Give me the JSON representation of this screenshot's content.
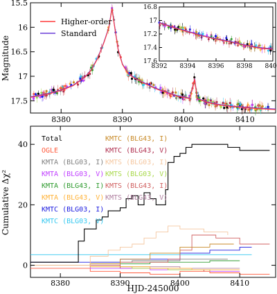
{
  "chart_data": [
    {
      "type": "scatter",
      "panel": "top",
      "ylabel": "Magnitude",
      "xlim": [
        8375,
        8415
      ],
      "ylim": [
        17.75,
        15.5
      ],
      "xticks": [
        "8380",
        "8390",
        "8400",
        "8410"
      ],
      "yticks": [
        "15.5",
        "16",
        "16.5",
        "17",
        "17.5"
      ],
      "legend": [
        {
          "name": "Higher-order",
          "color": "#ff3b3b"
        },
        {
          "name": "Standard",
          "color": "#6a3bd8"
        }
      ],
      "inset": {
        "xlim": [
          8392,
          8400
        ],
        "ylim": [
          17.6,
          16.8
        ],
        "xticks": [
          "8392",
          "8394",
          "8396",
          "8398",
          "8400"
        ],
        "yticks": [
          "16.8",
          "17",
          "17.2",
          "17.4",
          "17.6"
        ]
      },
      "model_curve": {
        "x": [
          8375,
          8378,
          8380,
          8382,
          8384,
          8385,
          8386,
          8387,
          8387.8,
          8388.3,
          8388.7,
          8389.3,
          8390,
          8391,
          8392,
          8393,
          8394,
          8395,
          8396,
          8397,
          8398,
          8399,
          8400,
          8401,
          8401.8,
          8402.2,
          8404,
          8406,
          8408,
          8410,
          8412,
          8415
        ],
        "y": [
          17.42,
          17.35,
          17.28,
          17.18,
          17.0,
          16.85,
          16.62,
          16.3,
          16.0,
          15.6,
          15.95,
          16.45,
          16.75,
          16.95,
          17.03,
          17.1,
          17.16,
          17.22,
          17.27,
          17.31,
          17.36,
          17.4,
          17.42,
          17.45,
          17.05,
          17.45,
          17.53,
          17.58,
          17.61,
          17.63,
          17.65,
          17.67
        ]
      }
    },
    {
      "type": "line",
      "panel": "bottom",
      "xlabel": "HJD-245000",
      "ylabel": "Cumulative Δχ²",
      "xlim": [
        8375,
        8416
      ],
      "ylim": [
        -4,
        46
      ],
      "xticks": [
        "8380",
        "8390",
        "8400",
        "8410"
      ],
      "yticks": [
        "0",
        "20",
        "40"
      ],
      "legend_left": [
        {
          "name": "Total",
          "color": "#000000"
        },
        {
          "name": "OGLE",
          "color": "#ff5a3c"
        },
        {
          "name": "KMTA (BLG03, I)",
          "color": "#808080"
        },
        {
          "name": "KMTA (BLG03, V)",
          "color": "#c040ff"
        },
        {
          "name": "KMTA (BLG43, I)",
          "color": "#2e9a2e"
        },
        {
          "name": "KMTA (BLG43, V)",
          "color": "#ffb33a"
        },
        {
          "name": "KMTC (BLG03, I)",
          "color": "#1a1adf"
        },
        {
          "name": "KMTC (BLG03, V)",
          "color": "#35c8f0"
        }
      ],
      "legend_right": [
        {
          "name": "KMTC (BLG43, I)",
          "color": "#c88a28"
        },
        {
          "name": "KMTC (BLG43, V)",
          "color": "#b03050"
        },
        {
          "name": "KMTS (BLG03, I)",
          "color": "#f5c7a0"
        },
        {
          "name": "KMTS (BLG03, V)",
          "color": "#a8d84a"
        },
        {
          "name": "KMTS (BLG43, I)",
          "color": "#d06060"
        },
        {
          "name": "KMTS (BLG43, V)",
          "color": "#b080a0"
        }
      ],
      "series": [
        {
          "name": "Total",
          "color": "#000000",
          "x": [
            8375,
            8380,
            8382.5,
            8383,
            8384,
            8386,
            8387,
            8388,
            8389,
            8390,
            8391,
            8392,
            8393,
            8394,
            8395,
            8396,
            8397,
            8397.6,
            8398,
            8399,
            8400,
            8401,
            8402,
            8403,
            8404,
            8408,
            8410,
            8415
          ],
          "y": [
            1,
            1,
            1,
            8,
            12,
            15,
            16,
            18,
            18,
            19,
            22,
            23,
            20,
            24,
            22,
            20,
            20,
            25,
            34,
            36,
            37,
            39,
            40,
            40,
            40,
            39,
            38,
            38
          ]
        },
        {
          "name": "KMTS (BLG03, I)",
          "color": "#f5c7a0",
          "x": [
            8375,
            8385,
            8388,
            8390,
            8392,
            8394,
            8396,
            8398,
            8400,
            8404,
            8408
          ],
          "y": [
            0,
            3,
            5,
            6,
            7,
            9,
            11,
            13,
            12,
            11,
            10
          ]
        },
        {
          "name": "KMTC (BLG43, I)",
          "color": "#c88a28",
          "x": [
            8375,
            8385,
            8390,
            8395,
            8400,
            8405,
            8409
          ],
          "y": [
            0,
            0.5,
            2,
            4,
            6,
            7,
            7
          ]
        },
        {
          "name": "KMTS (BLG43, I)",
          "color": "#d06060",
          "x": [
            8375,
            8390,
            8398,
            8400,
            8402,
            8406,
            8410,
            8415
          ],
          "y": [
            0,
            1,
            2,
            5,
            10,
            9,
            7,
            7
          ]
        },
        {
          "name": "KMTC (BLG03, V)",
          "color": "#35c8f0",
          "x": [
            8375,
            8385,
            8395,
            8405,
            8412
          ],
          "y": [
            3.5,
            3.5,
            3.5,
            3.5,
            3.5
          ]
        },
        {
          "name": "KMTC (BLG03, I)",
          "color": "#1a1adf",
          "x": [
            8375,
            8390,
            8400,
            8405,
            8410,
            8412
          ],
          "y": [
            1,
            2,
            4,
            5,
            6,
            6
          ]
        },
        {
          "name": "KMTA (BLG03, I)",
          "color": "#808080",
          "x": [
            8375,
            8385,
            8392,
            8400,
            8408
          ],
          "y": [
            0,
            1,
            1.5,
            2,
            2
          ]
        },
        {
          "name": "KMTA (BLG43, I)",
          "color": "#2e9a2e",
          "x": [
            8375,
            8385,
            8395,
            8405,
            8410
          ],
          "y": [
            0,
            0.5,
            1,
            1.5,
            1.5
          ]
        },
        {
          "name": "KMTA (BLG43, V)",
          "color": "#ffb33a",
          "x": [
            8375,
            8385,
            8395,
            8402,
            8410
          ],
          "y": [
            0,
            -0.5,
            -1,
            -1.5,
            -1.5
          ]
        },
        {
          "name": "KMTS (BLG03, V)",
          "color": "#a8d84a",
          "x": [
            8375,
            8385,
            8392,
            8398,
            8405
          ],
          "y": [
            0,
            -0.5,
            -1,
            -1.5,
            -2
          ]
        },
        {
          "name": "KMTA (BLG03, V)",
          "color": "#c040ff",
          "x": [
            8375,
            8385,
            8395,
            8405,
            8410
          ],
          "y": [
            0,
            -1,
            -1.5,
            -2,
            -2
          ]
        },
        {
          "name": "KMTC (BLG43, V)",
          "color": "#b03050",
          "x": [
            8375,
            8390,
            8398,
            8404
          ],
          "y": [
            0,
            -1,
            -1.5,
            -2
          ]
        },
        {
          "name": "KMTS (BLG43, V)",
          "color": "#b080a0",
          "x": [
            8375,
            8390,
            8400,
            8410
          ],
          "y": [
            0,
            -0.5,
            -1,
            -1
          ]
        },
        {
          "name": "OGLE",
          "color": "#ff5a3c",
          "x": [
            8375,
            8385,
            8390,
            8395,
            8400,
            8405,
            8410,
            8415
          ],
          "y": [
            -1,
            -2,
            -2.5,
            -3,
            -2,
            -2.5,
            -3,
            -3
          ]
        }
      ]
    }
  ]
}
